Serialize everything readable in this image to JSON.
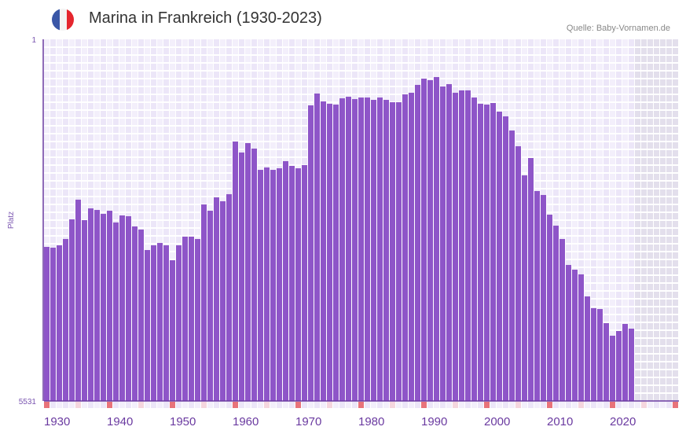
{
  "header": {
    "title": "Marina in Frankreich (1930-2023)",
    "source": "Quelle: Baby-Vornamen.de",
    "flag_icon": "france-flag-icon"
  },
  "colors": {
    "bar": "#8e55c8",
    "grid_a": "#f3effb",
    "grid_b": "#ece6f8",
    "future": "#e3dfec",
    "decade_marker": "#e8737a",
    "half_decade_marker": "#f5d6de",
    "axis": "#6a3aa0"
  },
  "chart_data": {
    "type": "bar",
    "title": "Marina in Frankreich (1930-2023)",
    "xlabel": "",
    "ylabel": "Platz",
    "y_inverted": true,
    "ylim": [
      1,
      5531
    ],
    "y_ticks": [
      "1",
      "5531"
    ],
    "xlim": [
      1930,
      2030
    ],
    "x_ticks": [
      1930,
      1940,
      1950,
      1960,
      1970,
      1980,
      1990,
      2000,
      2010,
      2020
    ],
    "x_tick_labels": [
      "1930",
      "1940",
      "1950",
      "1960",
      "1970",
      "1980",
      "1990",
      "2000",
      "2010",
      "2020"
    ],
    "x_start": 1930,
    "values": [
      3175,
      3187,
      3151,
      3054,
      2754,
      2453,
      2766,
      2586,
      2610,
      2670,
      2622,
      2802,
      2694,
      2706,
      2862,
      2910,
      3223,
      3151,
      3115,
      3151,
      3379,
      3151,
      3018,
      3018,
      3054,
      2526,
      2622,
      2417,
      2477,
      2369,
      1564,
      1732,
      1588,
      1672,
      1997,
      1961,
      1997,
      1973,
      1864,
      1936,
      1973,
      1924,
      1011,
      830,
      951,
      987,
      999,
      903,
      879,
      915,
      891,
      891,
      927,
      891,
      927,
      963,
      963,
      843,
      818,
      698,
      602,
      626,
      578,
      722,
      686,
      818,
      782,
      782,
      891,
      987,
      999,
      975,
      1107,
      1179,
      1395,
      1636,
      2081,
      1816,
      2321,
      2381,
      2682,
      2850,
      3054,
      3451,
      3523,
      3595,
      3932,
      4112,
      4125,
      4341,
      4533,
      4461,
      4353,
      4425
    ],
    "grid": true,
    "legend": "none"
  }
}
